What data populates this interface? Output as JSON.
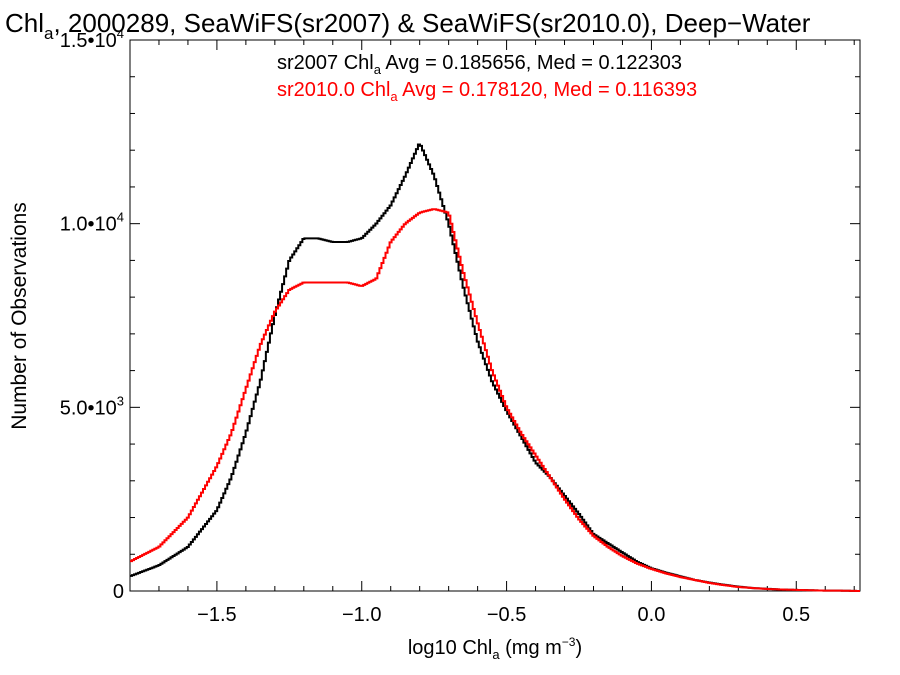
{
  "chart_data": {
    "type": "line",
    "step": true,
    "title": {
      "prefix": "Chl",
      "sub": "a",
      "suffix": ", 2000289, SeaWiFS(sr2007) & SeaWiFS(sr2010.0), Deep−Water"
    },
    "xlabel": {
      "prefix": "log10 Chl",
      "sub": "a",
      "mid": " (mg m",
      "sup": "−3",
      "suffix": ")"
    },
    "ylabel": "Number of Observations",
    "xlim": [
      -1.8,
      0.72
    ],
    "ylim": [
      0,
      15000
    ],
    "xticks": [
      {
        "value": -1.5,
        "label": "−1.5"
      },
      {
        "value": -1.0,
        "label": "−1.0"
      },
      {
        "value": -0.5,
        "label": "−0.5"
      },
      {
        "value": 0.0,
        "label": "0.0"
      },
      {
        "value": 0.5,
        "label": "0.5"
      }
    ],
    "yticks": [
      {
        "value": 0,
        "mantissa": "0",
        "exponent": ""
      },
      {
        "value": 5000,
        "mantissa": "5.0•10",
        "exponent": "3"
      },
      {
        "value": 10000,
        "mantissa": "1.0•10",
        "exponent": "4"
      },
      {
        "value": 15000,
        "mantissa": "1.5•10",
        "exponent": "4"
      }
    ],
    "x_minor_step": 0.1,
    "y_minor_step": 1000,
    "grid": false,
    "legend": [
      {
        "prefix": "sr2007 Chl",
        "sub": "a",
        "suffix": " Avg = 0.185656, Med = 0.122303",
        "color": "#000000"
      },
      {
        "prefix": "sr2010.0 Chl",
        "sub": "a",
        "suffix": " Avg = 0.178120, Med = 0.116393",
        "color": "#ff0000"
      }
    ],
    "series": [
      {
        "name": "sr2007",
        "color": "#000000",
        "x": [
          -1.8,
          -1.7,
          -1.6,
          -1.5,
          -1.45,
          -1.4,
          -1.35,
          -1.3,
          -1.25,
          -1.2,
          -1.15,
          -1.1,
          -1.05,
          -1.0,
          -0.95,
          -0.9,
          -0.85,
          -0.8,
          -0.75,
          -0.7,
          -0.65,
          -0.6,
          -0.55,
          -0.5,
          -0.45,
          -0.4,
          -0.35,
          -0.3,
          -0.25,
          -0.2,
          -0.15,
          -0.1,
          -0.05,
          0.0,
          0.05,
          0.1,
          0.15,
          0.2,
          0.25,
          0.3,
          0.35,
          0.4,
          0.45,
          0.5,
          0.55,
          0.6,
          0.65,
          0.72
        ],
        "y": [
          400,
          700,
          1200,
          2200,
          3100,
          4300,
          5700,
          7500,
          9000,
          9600,
          9600,
          9500,
          9500,
          9600,
          10000,
          10500,
          11300,
          12200,
          11300,
          10000,
          8300,
          6800,
          5700,
          4900,
          4200,
          3500,
          3100,
          2600,
          2100,
          1550,
          1300,
          1050,
          800,
          620,
          500,
          400,
          300,
          230,
          170,
          120,
          80,
          60,
          40,
          30,
          20,
          10,
          10,
          0
        ]
      },
      {
        "name": "sr2010.0",
        "color": "#ff0000",
        "x": [
          -1.8,
          -1.7,
          -1.6,
          -1.5,
          -1.45,
          -1.4,
          -1.35,
          -1.3,
          -1.25,
          -1.2,
          -1.15,
          -1.1,
          -1.05,
          -1.0,
          -0.95,
          -0.9,
          -0.85,
          -0.8,
          -0.75,
          -0.7,
          -0.65,
          -0.6,
          -0.55,
          -0.5,
          -0.45,
          -0.4,
          -0.35,
          -0.3,
          -0.25,
          -0.2,
          -0.15,
          -0.1,
          -0.05,
          0.0,
          0.05,
          0.1,
          0.15,
          0.2,
          0.25,
          0.3,
          0.35,
          0.4,
          0.45,
          0.5,
          0.55,
          0.6,
          0.65,
          0.72
        ],
        "y": [
          800,
          1200,
          2000,
          3400,
          4300,
          5500,
          6700,
          7600,
          8200,
          8400,
          8400,
          8400,
          8400,
          8300,
          8500,
          9500,
          10000,
          10300,
          10400,
          10300,
          8700,
          7300,
          6000,
          5000,
          4300,
          3700,
          3100,
          2500,
          1950,
          1500,
          1200,
          950,
          750,
          600,
          480,
          380,
          300,
          220,
          160,
          110,
          80,
          55,
          40,
          30,
          20,
          10,
          10,
          0
        ]
      }
    ]
  }
}
